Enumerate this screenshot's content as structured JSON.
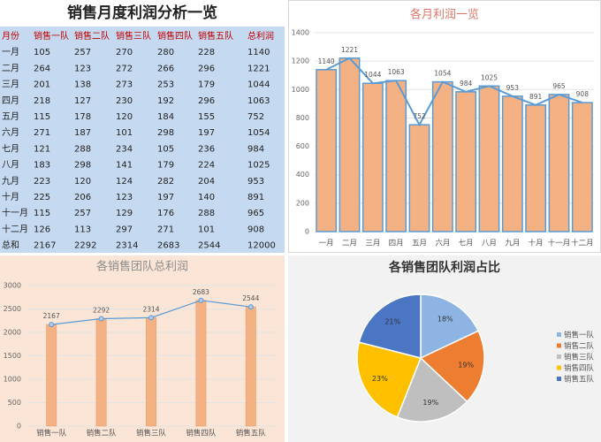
{
  "table": {
    "title": "销售月度利润分析一览",
    "header": [
      "月份",
      "销售一队",
      "销售二队",
      "销售三队",
      "销售四队",
      "销售五队",
      "总利润"
    ],
    "rows": [
      [
        "一月",
        "105",
        "257",
        "270",
        "280",
        "228",
        "1140"
      ],
      [
        "二月",
        "264",
        "123",
        "272",
        "266",
        "296",
        "1221"
      ],
      [
        "三月",
        "201",
        "138",
        "273",
        "253",
        "179",
        "1044"
      ],
      [
        "四月",
        "218",
        "127",
        "230",
        "192",
        "296",
        "1063"
      ],
      [
        "五月",
        "115",
        "178",
        "120",
        "184",
        "155",
        "752"
      ],
      [
        "六月",
        "271",
        "187",
        "101",
        "298",
        "197",
        "1054"
      ],
      [
        "七月",
        "121",
        "288",
        "234",
        "105",
        "236",
        "984"
      ],
      [
        "八月",
        "183",
        "298",
        "141",
        "179",
        "224",
        "1025"
      ],
      [
        "九月",
        "223",
        "120",
        "124",
        "282",
        "204",
        "953"
      ],
      [
        "十月",
        "225",
        "206",
        "123",
        "197",
        "140",
        "891"
      ],
      [
        "十一月",
        "115",
        "257",
        "129",
        "176",
        "288",
        "965"
      ],
      [
        "十二月",
        "126",
        "113",
        "297",
        "271",
        "101",
        "908"
      ],
      [
        "总和",
        "2167",
        "2292",
        "2314",
        "2683",
        "2544",
        "12000"
      ]
    ]
  },
  "chart_data": [
    {
      "type": "bar",
      "title": "各月利润一览",
      "categories": [
        "一月",
        "二月",
        "三月",
        "四月",
        "五月",
        "六月",
        "七月",
        "八月",
        "九月",
        "十月",
        "十一月",
        "十二月"
      ],
      "values": [
        1140,
        1221,
        1044,
        1063,
        752,
        1054,
        984,
        1025,
        953,
        891,
        965,
        908
      ],
      "color": "#f4b183",
      "line_color": "#5b9bd5",
      "ylim": [
        0,
        1400
      ],
      "yticks": [
        0,
        200,
        400,
        600,
        800,
        1000,
        1200,
        1400
      ],
      "grid": true
    },
    {
      "type": "bar",
      "title": "各销售团队总利润",
      "categories": [
        "销售一队",
        "销售二队",
        "销售三队",
        "销售四队",
        "销售五队"
      ],
      "values": [
        2167,
        2292,
        2314,
        2683,
        2544
      ],
      "color": "#f4b183",
      "line_color": "#5b9bd5",
      "ylim": [
        0,
        3000
      ],
      "yticks": [
        0,
        500,
        1000,
        1500,
        2000,
        2500,
        3000
      ],
      "grid": true
    },
    {
      "type": "pie",
      "title": "各销售团队利润占比",
      "categories": [
        "销售一队",
        "销售二队",
        "销售三队",
        "销售四队",
        "销售五队"
      ],
      "values": [
        18,
        19,
        19,
        23,
        21
      ],
      "value_labels": [
        "18%",
        "19%",
        "19%",
        "23%",
        "21%"
      ],
      "colors": [
        "#8db4e2",
        "#ed7d31",
        "#bfbfbf",
        "#ffc000",
        "#4a76c4"
      ],
      "legend": "right"
    }
  ]
}
